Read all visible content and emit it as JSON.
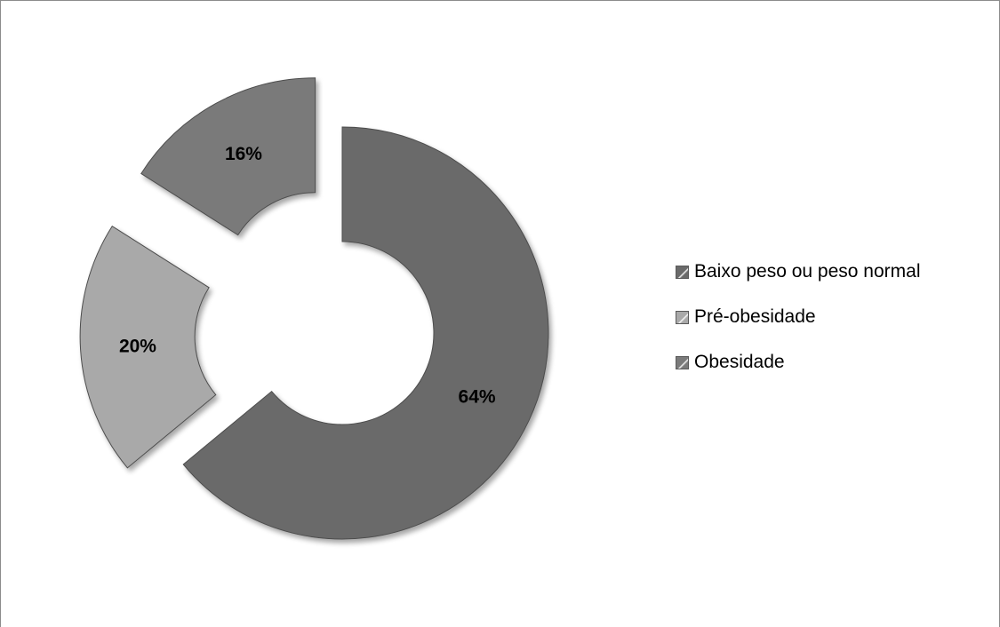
{
  "chart_data": {
    "type": "pie",
    "donut": true,
    "exploded": true,
    "categories": [
      "Baixo peso ou peso normal",
      "Pré-obesidade",
      "Obesidade"
    ],
    "values": [
      64,
      20,
      16
    ],
    "data_labels": [
      "64%",
      "20%",
      "16%"
    ],
    "colors": [
      "#6a6a6a",
      "#a9a9a9",
      "#7a7a7a"
    ],
    "title": "",
    "legend_position": "right"
  },
  "legend": {
    "items": [
      {
        "label": "Baixo peso ou peso normal",
        "color": "#6a6a6a"
      },
      {
        "label": "Pré-obesidade",
        "color": "#a9a9a9"
      },
      {
        "label": "Obesidade",
        "color": "#7a7a7a"
      }
    ]
  }
}
